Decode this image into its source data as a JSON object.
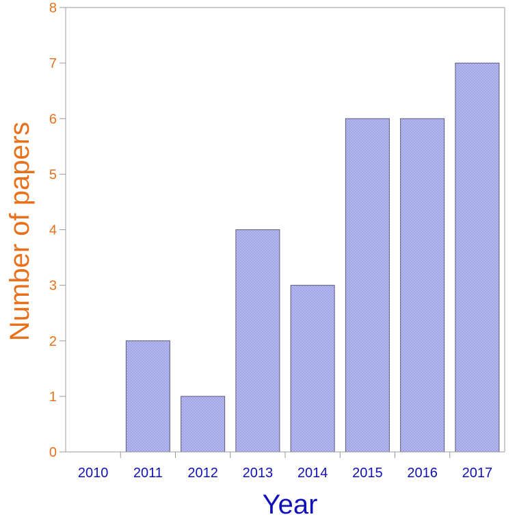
{
  "chart_data": {
    "type": "bar",
    "title": "",
    "xlabel": "Year",
    "ylabel": "Number of papers",
    "categories": [
      "2010",
      "2011",
      "2012",
      "2013",
      "2014",
      "2015",
      "2016",
      "2017"
    ],
    "values": [
      0,
      2,
      1,
      4,
      3,
      6,
      6,
      7
    ],
    "ylim": [
      0,
      8
    ],
    "yticks": [
      "0",
      "1",
      "2",
      "3",
      "4",
      "5",
      "6",
      "7",
      "8"
    ],
    "grid": false,
    "legend": "none"
  },
  "colors": {
    "bar_fill": "#b8bcf0",
    "bar_hatch": "#9297e0",
    "bar_edge": "#5a5a78",
    "axis": "#999999",
    "xlabel": "#1010b8",
    "ylabel": "#e8701a",
    "xtick": "#1010b8",
    "ytick": "#e8701a"
  }
}
